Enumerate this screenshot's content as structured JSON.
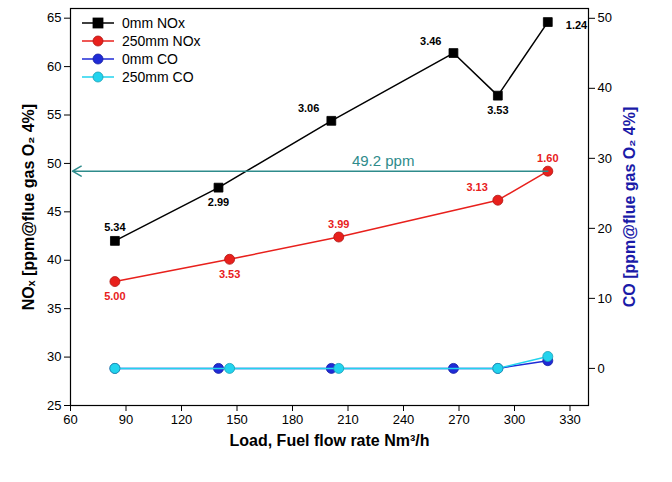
{
  "chart_data": {
    "type": "line",
    "xlabel": "Load, Fuel flow rate Nm³/h",
    "ylabel": "NOₓ [ppm@flue gas O₂ 4%]",
    "y2label": "CO [ppm@flue gas O₂ 4%]",
    "xlim": [
      60,
      340
    ],
    "xticks": [
      60,
      90,
      120,
      150,
      180,
      210,
      240,
      270,
      300,
      330
    ],
    "ylim": [
      25,
      66
    ],
    "yticks": [
      25,
      30,
      35,
      40,
      45,
      50,
      55,
      60,
      65
    ],
    "y2lim": [
      -5.3,
      51.4
    ],
    "y2ticks": [
      0,
      10,
      20,
      30,
      40,
      50
    ],
    "legend": "upper left",
    "series": [
      {
        "name": "0mm NOx",
        "color": "#000000",
        "marker": "square",
        "x": [
          84,
          140,
          201,
          267,
          291,
          318
        ],
        "values": [
          42.0,
          47.5,
          54.4,
          61.4,
          57.0,
          64.6
        ],
        "labels": [
          "5.34",
          "2.99",
          "3.06",
          "3.46",
          "3.53",
          "1.24"
        ]
      },
      {
        "name": "250mm NOx",
        "color": "#e8201c",
        "marker": "circle",
        "x": [
          84,
          146,
          205,
          291,
          318
        ],
        "values": [
          37.8,
          40.1,
          42.4,
          46.2,
          49.2
        ],
        "labels": [
          "5.00",
          "3.53",
          "3.99",
          "3.13",
          "1.60"
        ]
      },
      {
        "name": "0mm CO",
        "color": "#1f2bd6",
        "marker": "circle",
        "axis": "y2",
        "x": [
          84,
          140,
          201,
          267,
          291,
          318
        ],
        "values": [
          0,
          0,
          0,
          0,
          0,
          1.1
        ]
      },
      {
        "name": "250mm CO",
        "color": "#22d3ee",
        "marker": "circle",
        "axis": "y2",
        "x": [
          84,
          146,
          205,
          291,
          318
        ],
        "values": [
          0,
          0,
          0,
          0,
          1.7
        ]
      }
    ],
    "annotations": [
      {
        "text": "49.2 ppm",
        "y": 49.2,
        "x_start": 318,
        "x_end": 60,
        "color": "#2e8b8b"
      }
    ]
  }
}
